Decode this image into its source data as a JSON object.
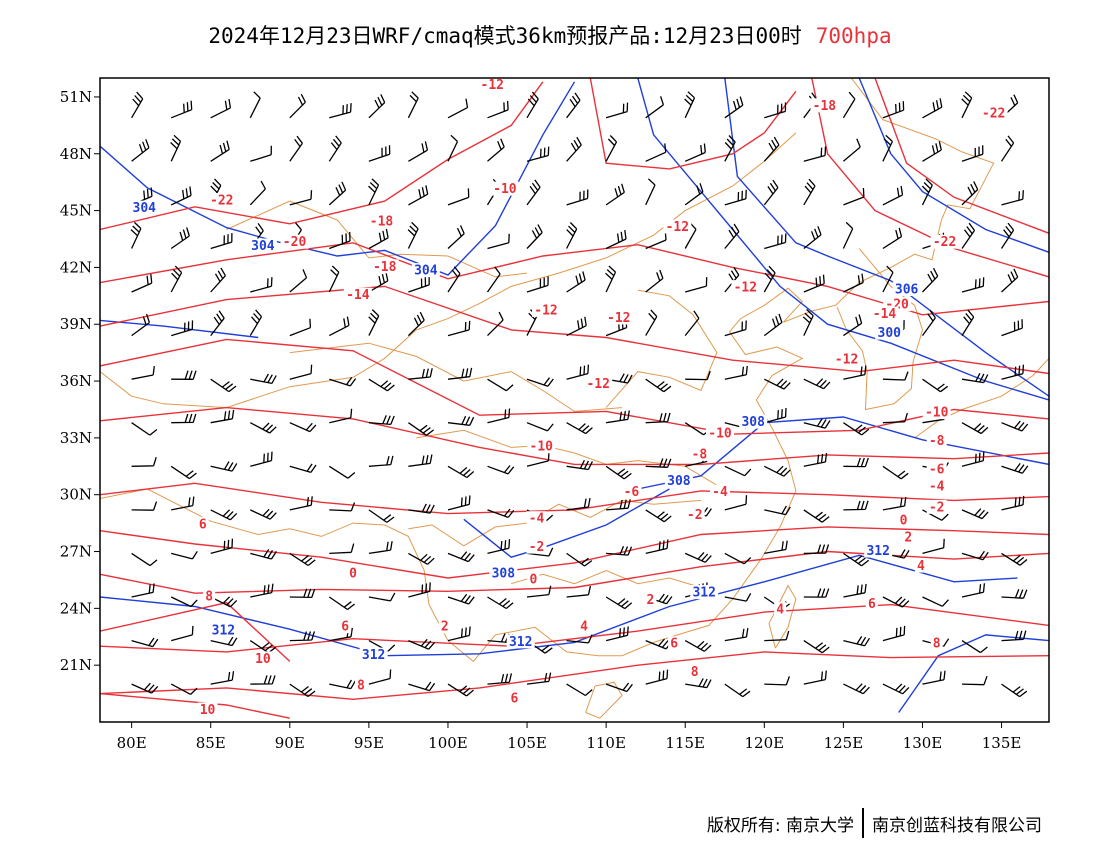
{
  "header": {
    "title": "2024年12月23日WRF/cmaq模式36km预报产品:12月23日00时",
    "level": "700hpa"
  },
  "map": {
    "lon_range": [
      78,
      138
    ],
    "lat_range": [
      18,
      52
    ],
    "lon_ticks": [
      80,
      85,
      90,
      95,
      100,
      105,
      110,
      115,
      120,
      125,
      130,
      135
    ],
    "lon_tick_labels": [
      "80E",
      "85E",
      "90E",
      "95E",
      "100E",
      "105E",
      "110E",
      "115E",
      "120E",
      "125E",
      "130E",
      "135E"
    ],
    "lat_ticks": [
      21,
      24,
      27,
      30,
      33,
      36,
      39,
      42,
      45,
      48,
      51
    ],
    "lat_tick_labels": [
      "21N",
      "24N",
      "27N",
      "30N",
      "33N",
      "36N",
      "39N",
      "42N",
      "45N",
      "48N",
      "51N"
    ],
    "temperature_color": "#e8323a",
    "height_color": "#1f3fd8",
    "boundary_color": "#e09a50",
    "wind_color": "#000000",
    "temperature_labels": [
      {
        "text": "-12",
        "lon": 102.8,
        "lat": 51.5
      },
      {
        "text": "-10",
        "lon": 103.6,
        "lat": 46.0
      },
      {
        "text": "-18",
        "lon": 95.8,
        "lat": 44.3
      },
      {
        "text": "-18",
        "lon": 96.0,
        "lat": 41.9
      },
      {
        "text": "-14",
        "lon": 94.3,
        "lat": 40.4
      },
      {
        "text": "-22",
        "lon": 85.7,
        "lat": 45.4
      },
      {
        "text": "-20",
        "lon": 90.3,
        "lat": 43.2
      },
      {
        "text": "-12",
        "lon": 106.2,
        "lat": 39.6
      },
      {
        "text": "-12",
        "lon": 114.5,
        "lat": 44.0
      },
      {
        "text": "-12",
        "lon": 118.8,
        "lat": 40.8
      },
      {
        "text": "-12",
        "lon": 110.8,
        "lat": 39.2
      },
      {
        "text": "-12",
        "lon": 109.5,
        "lat": 35.7
      },
      {
        "text": "-12",
        "lon": 125.2,
        "lat": 37.0
      },
      {
        "text": "-10",
        "lon": 105.9,
        "lat": 32.4
      },
      {
        "text": "-10",
        "lon": 117.2,
        "lat": 33.1
      },
      {
        "text": "-8",
        "lon": 115.9,
        "lat": 32.0
      },
      {
        "text": "-6",
        "lon": 111.6,
        "lat": 30.0
      },
      {
        "text": "-4",
        "lon": 117.2,
        "lat": 30.0
      },
      {
        "text": "-4",
        "lon": 105.6,
        "lat": 28.6
      },
      {
        "text": "-2",
        "lon": 115.6,
        "lat": 28.8
      },
      {
        "text": "-2",
        "lon": 105.6,
        "lat": 27.1
      },
      {
        "text": "0",
        "lon": 105.4,
        "lat": 25.4
      },
      {
        "text": "0",
        "lon": 94.0,
        "lat": 25.7
      },
      {
        "text": "2",
        "lon": 112.8,
        "lat": 24.3
      },
      {
        "text": "2",
        "lon": 99.8,
        "lat": 22.9
      },
      {
        "text": "4",
        "lon": 108.6,
        "lat": 22.9
      },
      {
        "text": "4",
        "lon": 121.0,
        "lat": 23.8
      },
      {
        "text": "6",
        "lon": 84.5,
        "lat": 28.3
      },
      {
        "text": "6",
        "lon": 93.5,
        "lat": 22.9
      },
      {
        "text": "6",
        "lon": 114.3,
        "lat": 22.0
      },
      {
        "text": "6",
        "lon": 126.8,
        "lat": 24.1
      },
      {
        "text": "6",
        "lon": 104.2,
        "lat": 19.1
      },
      {
        "text": "8",
        "lon": 84.9,
        "lat": 24.5
      },
      {
        "text": "8",
        "lon": 115.6,
        "lat": 20.5
      },
      {
        "text": "8",
        "lon": 130.9,
        "lat": 22.0
      },
      {
        "text": "8",
        "lon": 94.5,
        "lat": 19.8
      },
      {
        "text": "10",
        "lon": 88.3,
        "lat": 21.2
      },
      {
        "text": "10",
        "lon": 84.8,
        "lat": 18.5
      },
      {
        "text": "-22",
        "lon": 134.5,
        "lat": 50.0
      },
      {
        "text": "-22",
        "lon": 131.4,
        "lat": 43.2
      },
      {
        "text": "-20",
        "lon": 128.4,
        "lat": 39.9
      },
      {
        "text": "-14",
        "lon": 127.6,
        "lat": 39.4
      },
      {
        "text": "-18",
        "lon": 123.8,
        "lat": 50.4
      },
      {
        "text": "-10",
        "lon": 130.9,
        "lat": 34.2
      },
      {
        "text": "-8",
        "lon": 130.9,
        "lat": 32.7
      },
      {
        "text": "-6",
        "lon": 130.9,
        "lat": 31.2
      },
      {
        "text": "-4",
        "lon": 130.9,
        "lat": 30.3
      },
      {
        "text": "-2",
        "lon": 130.9,
        "lat": 29.2
      },
      {
        "text": "0",
        "lon": 128.8,
        "lat": 28.5
      },
      {
        "text": "2",
        "lon": 129.1,
        "lat": 27.6
      },
      {
        "text": "4",
        "lon": 129.9,
        "lat": 26.1
      }
    ],
    "height_labels": [
      {
        "text": "304",
        "lon": 80.8,
        "lat": 45.0
      },
      {
        "text": "304",
        "lon": 88.3,
        "lat": 43.0
      },
      {
        "text": "304",
        "lon": 98.6,
        "lat": 41.7
      },
      {
        "text": "308",
        "lon": 119.3,
        "lat": 33.7
      },
      {
        "text": "308",
        "lon": 114.6,
        "lat": 30.6
      },
      {
        "text": "308",
        "lon": 103.5,
        "lat": 25.7
      },
      {
        "text": "312",
        "lon": 85.8,
        "lat": 22.7
      },
      {
        "text": "312",
        "lon": 95.3,
        "lat": 21.4
      },
      {
        "text": "312",
        "lon": 104.6,
        "lat": 22.1
      },
      {
        "text": "312",
        "lon": 116.2,
        "lat": 24.7
      },
      {
        "text": "312",
        "lon": 127.2,
        "lat": 26.9
      },
      {
        "text": "306",
        "lon": 129.0,
        "lat": 40.7
      },
      {
        "text": "300",
        "lon": 127.9,
        "lat": 38.4
      }
    ]
  },
  "footer": {
    "copyright": "版权所有: 南京大学",
    "company": "南京创蓝科技有限公司"
  }
}
